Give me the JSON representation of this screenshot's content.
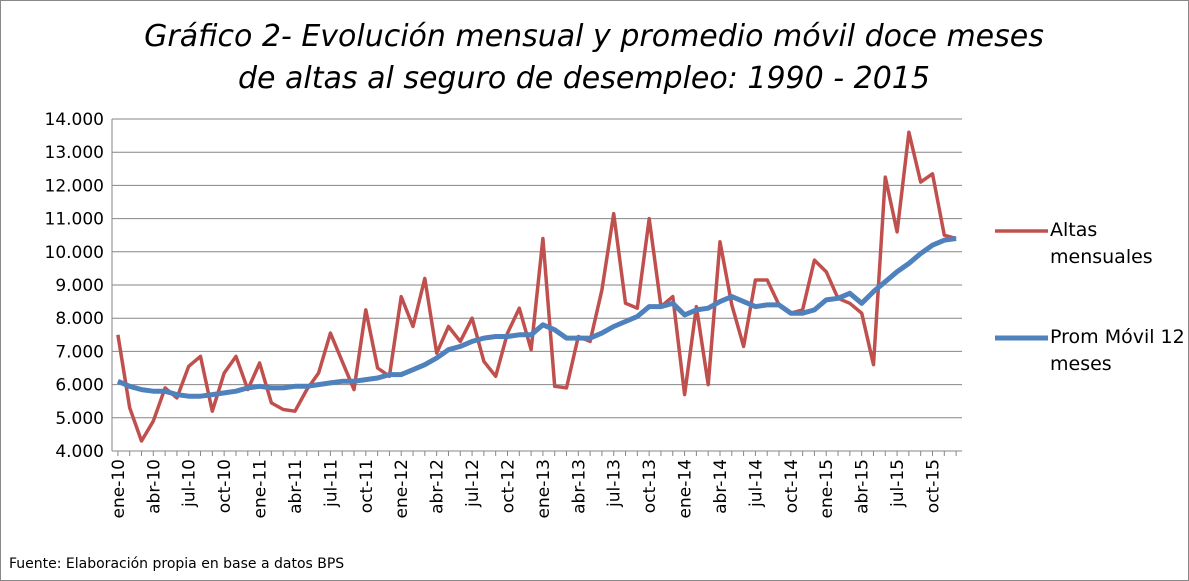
{
  "chart_data": {
    "type": "line",
    "title": "Gráfico 2- Evolución mensual y promedio móvil doce meses",
    "subtitle": "de altas al seguro de desempleo: 1990 - 2015",
    "source": "Fuente: Elaboración propia en base a datos BPS",
    "categories": [
      "ene-10",
      null,
      null,
      "abr-10",
      null,
      null,
      "jul-10",
      null,
      null,
      "oct-10",
      null,
      null,
      "ene-11",
      null,
      null,
      "abr-11",
      null,
      null,
      "jul-11",
      null,
      null,
      "oct-11",
      null,
      null,
      "ene-12",
      null,
      null,
      "abr-12",
      null,
      null,
      "jul-12",
      null,
      null,
      "oct-12",
      null,
      null,
      "ene-13",
      null,
      null,
      "abr-13",
      null,
      null,
      "jul-13",
      null,
      null,
      "oct-13",
      null,
      null,
      "ene-14",
      null,
      null,
      "abr-14",
      null,
      null,
      "jul-14",
      null,
      null,
      "oct-14",
      null,
      null,
      "ene-15",
      null,
      null,
      "abr-15",
      null,
      null,
      "jul-15",
      null,
      null,
      "oct-15",
      null,
      null
    ],
    "series": [
      {
        "name": "Altas mensuales",
        "color": "#c0504d",
        "values": [
          7500,
          5300,
          4300,
          4900,
          5900,
          5600,
          6550,
          6850,
          5200,
          6350,
          6850,
          5850,
          6650,
          5450,
          5250,
          5200,
          5850,
          6350,
          7550,
          6700,
          5850,
          8250,
          6500,
          6250,
          8650,
          7750,
          9200,
          6950,
          7750,
          7300,
          8000,
          6700,
          6250,
          7550,
          8300,
          7050,
          10400,
          5950,
          5900,
          7450,
          7300,
          8850,
          11150,
          8450,
          8300,
          11000,
          8350,
          8650,
          5700,
          8350,
          6000,
          10300,
          8400,
          7150,
          9150,
          9150,
          8400,
          8150,
          8250,
          9750,
          9400,
          8600,
          8450,
          8150,
          6600,
          12250,
          10600,
          13600,
          12100,
          12350,
          10500,
          10400
        ]
      },
      {
        "name": "Prom Móvil 12 meses",
        "color": "#4f81bd",
        "values": [
          6100,
          5950,
          5850,
          5800,
          5800,
          5700,
          5650,
          5650,
          5700,
          5750,
          5800,
          5900,
          5950,
          5900,
          5900,
          5950,
          5950,
          6000,
          6050,
          6100,
          6100,
          6150,
          6200,
          6300,
          6300,
          6450,
          6600,
          6800,
          7050,
          7150,
          7300,
          7400,
          7450,
          7450,
          7500,
          7500,
          7800,
          7650,
          7400,
          7400,
          7400,
          7550,
          7750,
          7900,
          8050,
          8350,
          8350,
          8450,
          8100,
          8250,
          8300,
          8500,
          8650,
          8500,
          8350,
          8400,
          8400,
          8150,
          8150,
          8250,
          8550,
          8600,
          8750,
          8450,
          8800,
          9100,
          9400,
          9650,
          9950,
          10200,
          10350,
          10400
        ]
      }
    ],
    "ylim": [
      4000,
      14000
    ],
    "yticks": [
      {
        "value": 4000,
        "label": "4.000"
      },
      {
        "value": 5000,
        "label": "5.000"
      },
      {
        "value": 6000,
        "label": "6.000"
      },
      {
        "value": 7000,
        "label": "7.000"
      },
      {
        "value": 8000,
        "label": "8.000"
      },
      {
        "value": 9000,
        "label": "9.000"
      },
      {
        "value": 10000,
        "label": "10.000"
      },
      {
        "value": 11000,
        "label": "11.000"
      },
      {
        "value": 12000,
        "label": "12.000"
      },
      {
        "value": 13000,
        "label": "13.000"
      },
      {
        "value": 14000,
        "label": "14.000"
      }
    ],
    "grid": true,
    "legend": "right"
  }
}
